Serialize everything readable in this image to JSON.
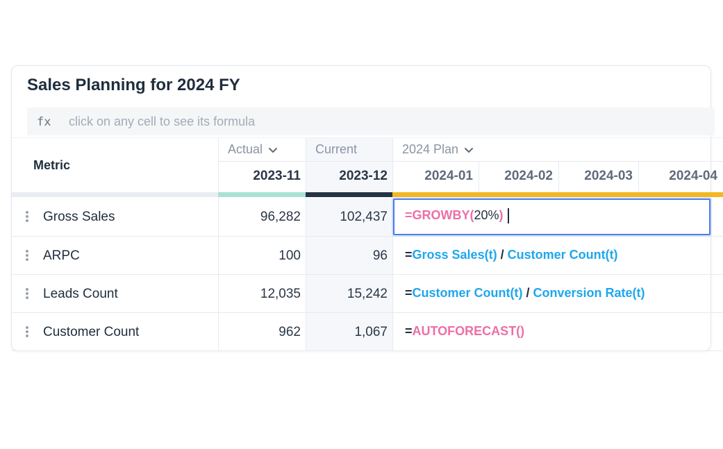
{
  "title": "Sales Planning for 2024 FY",
  "formula_bar": {
    "label": "fx",
    "placeholder": "click on any cell to see its formula"
  },
  "table": {
    "metric_header": "Metric",
    "groups": [
      {
        "label": "Actual",
        "dropdown": true,
        "stripe_color": "#a9e2d5",
        "columns": [
          "2023-11"
        ]
      },
      {
        "label": "Current",
        "dropdown": false,
        "stripe_color": "#253445",
        "columns": [
          "2023-12"
        ]
      },
      {
        "label": "2024 Plan",
        "dropdown": true,
        "stripe_color": "#f2b822",
        "columns": [
          "2024-01",
          "2024-02",
          "2024-03",
          "2024-04"
        ]
      }
    ],
    "rows": [
      {
        "metric": "Gross Sales",
        "values": [
          "96,282",
          "102,437"
        ],
        "formula": [
          {
            "text": "=GROWBY(",
            "color": "#ec6fa6"
          },
          {
            "text": "20%",
            "color": "#1f2d3d"
          },
          {
            "text": ")",
            "color": "#ec6fa6"
          }
        ]
      },
      {
        "metric": "ARPC",
        "values": [
          "100",
          "96"
        ],
        "formula": [
          {
            "text": "=",
            "color": "#1f2d3d"
          },
          {
            "text": "Gross Sales(t)",
            "color": "#1ea7ec"
          },
          {
            "text": " / ",
            "color": "#1f2d3d"
          },
          {
            "text": "Customer Count(t)",
            "color": "#1ea7ec"
          }
        ]
      },
      {
        "metric": "Leads Count",
        "values": [
          "12,035",
          "15,242"
        ],
        "formula": [
          {
            "text": "=",
            "color": "#1f2d3d"
          },
          {
            "text": "Customer Count(t)",
            "color": "#1ea7ec"
          },
          {
            "text": " / ",
            "color": "#1f2d3d"
          },
          {
            "text": "Conversion Rate(t)",
            "color": "#1ea7ec"
          }
        ]
      },
      {
        "metric": "Customer Count",
        "values": [
          "962",
          "1,067"
        ],
        "formula": [
          {
            "text": "=",
            "color": "#1f2d3d"
          },
          {
            "text": "AUTOFORECAST()",
            "color": "#ec6fa6"
          }
        ]
      }
    ]
  }
}
